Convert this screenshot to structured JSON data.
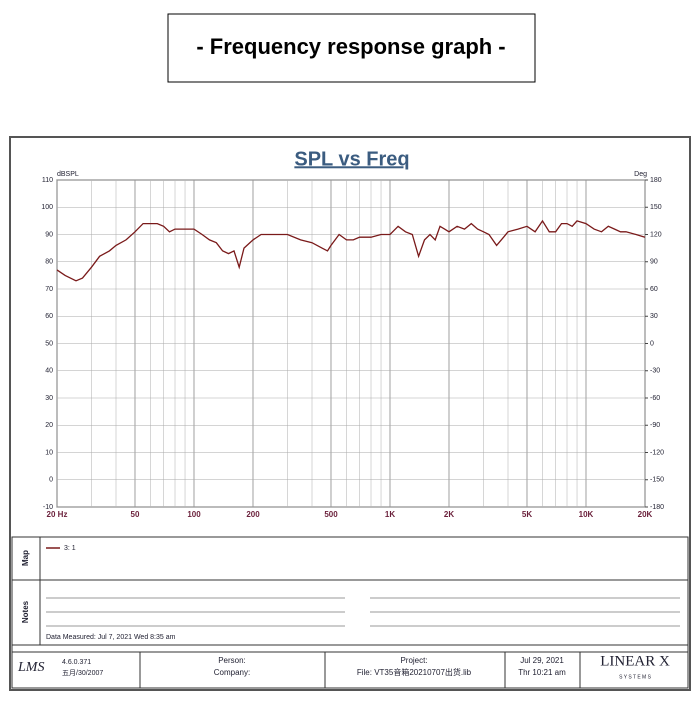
{
  "header": {
    "title": "- Frequency response graph -"
  },
  "chart_data": {
    "type": "line",
    "title": "SPL vs Freq",
    "ylabel": "dBSPL",
    "y2label": "Deg",
    "x": [
      20,
      22,
      25,
      27,
      30,
      33,
      37,
      40,
      45,
      50,
      55,
      60,
      65,
      70,
      75,
      80,
      90,
      100,
      110,
      120,
      130,
      140,
      150,
      160,
      170,
      180,
      200,
      220,
      250,
      280,
      300,
      350,
      400,
      450,
      480,
      500,
      550,
      600,
      650,
      700,
      800,
      900,
      1000,
      1100,
      1200,
      1300,
      1400,
      1500,
      1600,
      1700,
      1800,
      1900,
      2000,
      2200,
      2400,
      2600,
      2800,
      3000,
      3200,
      3500,
      3800,
      4000,
      4500,
      5000,
      5500,
      6000,
      6500,
      7000,
      7500,
      8000,
      8500,
      9000,
      10000,
      11000,
      12000,
      13000,
      14000,
      15000,
      16000,
      18000,
      20000
    ],
    "series": [
      {
        "name": "3: 1",
        "color": "#7a1a1a",
        "values": [
          77,
          75,
          73,
          74,
          78,
          82,
          84,
          86,
          88,
          91,
          94,
          94,
          94,
          93,
          91,
          92,
          92,
          92,
          90,
          88,
          87,
          84,
          83,
          84,
          78,
          85,
          88,
          90,
          90,
          90,
          90,
          88,
          87,
          85,
          84,
          86,
          90,
          88,
          88,
          89,
          89,
          90,
          90,
          93,
          91,
          90,
          82,
          88,
          90,
          88,
          93,
          92,
          91,
          93,
          92,
          94,
          92,
          91,
          90,
          86,
          89,
          91,
          92,
          93,
          91,
          95,
          91,
          91,
          94,
          94,
          93,
          95,
          94,
          92,
          91,
          93,
          92,
          91,
          91,
          90,
          89
        ]
      }
    ],
    "xlim": [
      20,
      20000
    ],
    "log_x": true,
    "xticks": [
      {
        "value": 20,
        "label": "20 Hz"
      },
      50,
      100,
      200,
      500,
      {
        "value": 1000,
        "label": "1K"
      },
      {
        "value": 2000,
        "label": "2K"
      },
      {
        "value": 5000,
        "label": "5K"
      },
      {
        "value": 10000,
        "label": "10K"
      },
      {
        "value": 20000,
        "label": "20K"
      }
    ],
    "xminorticks": [
      30,
      40,
      60,
      70,
      80,
      90,
      300,
      400,
      600,
      700,
      800,
      900,
      3000,
      4000,
      6000,
      7000,
      8000,
      9000
    ],
    "ylim": [
      -10,
      110
    ],
    "yticks": [
      -10,
      0,
      10,
      20,
      30,
      40,
      50,
      60,
      70,
      80,
      90,
      100,
      110
    ],
    "y2lim": [
      -180,
      180
    ],
    "y2ticks": [
      -180,
      -150,
      -120,
      -90,
      -60,
      -30,
      0,
      30,
      60,
      90,
      120,
      150,
      180
    ],
    "grid": true
  },
  "panel": {
    "map_label": "Map",
    "notes_label": "Notes",
    "measured": "Data Measured: Jul 7, 2021  Wed  8:35 am"
  },
  "footer": {
    "logo": "LMS",
    "version": "4.6.0.371",
    "build_date": "五月/30/2007",
    "person": "Person:",
    "company": "Company:",
    "project": "Project:",
    "file": "File: VT35音箱20210707出货.lib",
    "date": "Jul 29, 2021",
    "time": "Thr 10:21 am",
    "brand": "LINEAR X",
    "brand_sub": "S Y S T E M S"
  }
}
